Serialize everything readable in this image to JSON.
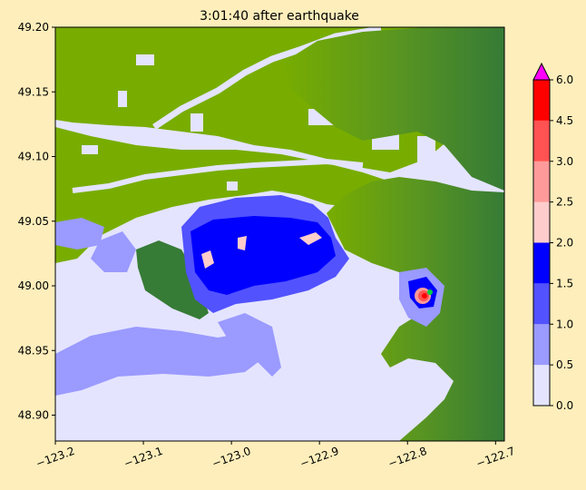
{
  "chart_data": {
    "type": "heatmap",
    "title": "3:01:40 after earthquake",
    "xlabel": "",
    "ylabel": "",
    "xlim": [
      -123.2,
      -122.69
    ],
    "ylim": [
      48.88,
      49.2
    ],
    "x_ticks": [
      -123.2,
      -123.1,
      -123.0,
      -122.9,
      -122.8,
      -122.7
    ],
    "x_tick_labels": [
      "−123.2",
      "−123.1",
      "−123.0",
      "−122.9",
      "−122.8",
      "−122.7"
    ],
    "y_ticks": [
      48.9,
      48.95,
      49.0,
      49.05,
      49.1,
      49.15,
      49.2
    ],
    "y_tick_labels": [
      "48.90",
      "48.95",
      "49.00",
      "49.05",
      "49.10",
      "49.15",
      "49.20"
    ],
    "colorbar": {
      "ticks": [
        0.0,
        0.5,
        1.0,
        1.5,
        2.0,
        2.5,
        3.0,
        4.5,
        6.0
      ],
      "tick_labels": [
        "0.0",
        "0.5",
        "1.0",
        "1.5",
        "2.0",
        "2.5",
        "3.0",
        "4.5",
        "6.0"
      ],
      "colors": [
        "#e4e4ff",
        "#9a9aff",
        "#5252ff",
        "#0000ff",
        "#ffcccc",
        "#ff9a9a",
        "#ff5252",
        "#ff0000"
      ],
      "extend_max_color": "#ff00ff"
    },
    "colors": {
      "land_low": "#78ad00",
      "land_high": "#367b36",
      "water_dry": "#e4e4ff"
    }
  }
}
